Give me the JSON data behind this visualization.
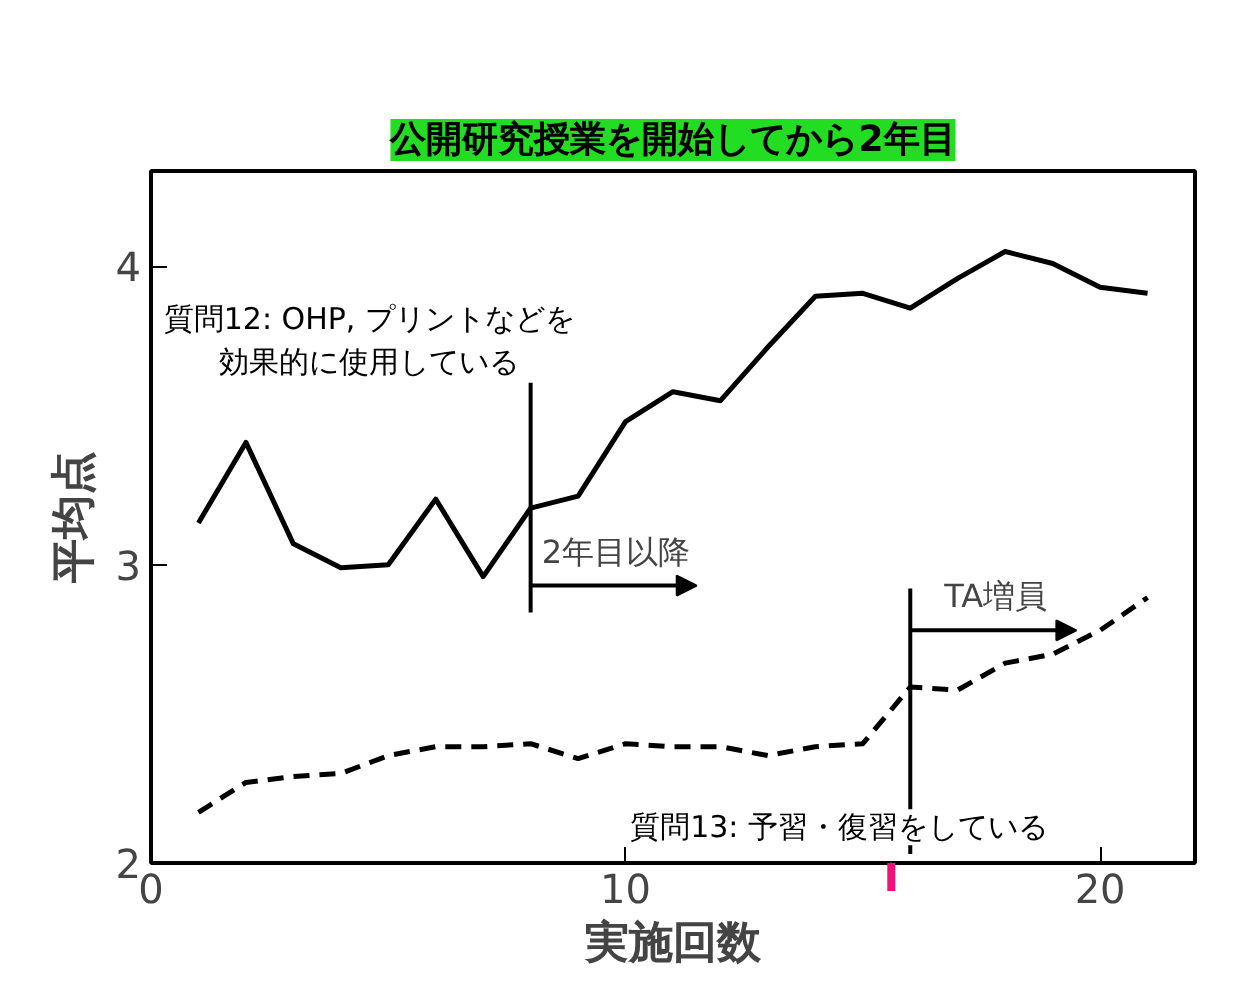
{
  "chart_data": {
    "type": "line",
    "xlabel": "実施回数",
    "ylabel": "平均点",
    "xlim": [
      0,
      22
    ],
    "ylim": [
      2,
      4.32
    ],
    "xticks": [
      0,
      10,
      20
    ],
    "yticks": [
      2,
      3,
      4
    ],
    "grid": false,
    "marker": "none",
    "series": [
      {
        "name": "質問12: OHP, プリントなどを効果的に使用している",
        "color": "#000000",
        "line_style": "solid",
        "x": [
          1,
          2,
          3,
          4,
          5,
          6,
          7,
          8,
          9,
          10,
          11,
          12,
          13,
          14,
          15,
          16,
          17,
          18,
          19,
          20,
          21
        ],
        "values": [
          3.14,
          3.41,
          3.07,
          2.99,
          3.0,
          3.22,
          2.96,
          3.19,
          3.23,
          3.48,
          3.58,
          3.55,
          3.73,
          3.9,
          3.91,
          3.86,
          3.96,
          4.05,
          4.01,
          3.93,
          3.91
        ]
      },
      {
        "name": "質問13:  予習・復習をしている",
        "color": "#000000",
        "line_style": "dashed",
        "x": [
          1,
          2,
          3,
          4,
          5,
          6,
          7,
          8,
          9,
          10,
          11,
          12,
          13,
          14,
          15,
          16,
          17,
          18,
          19,
          20,
          21
        ],
        "values": [
          2.17,
          2.27,
          2.29,
          2.3,
          2.36,
          2.39,
          2.39,
          2.4,
          2.35,
          2.4,
          2.39,
          2.39,
          2.36,
          2.39,
          2.4,
          2.59,
          2.58,
          2.67,
          2.7,
          2.78,
          2.89
        ]
      }
    ],
    "ref_lines": [
      {
        "axis": "x",
        "value": 8,
        "label": "2年目以降"
      },
      {
        "axis": "x",
        "value": 16,
        "label": "TA増員"
      }
    ],
    "annotations": [
      "公開研究授業を開始してから2年目"
    ]
  }
}
